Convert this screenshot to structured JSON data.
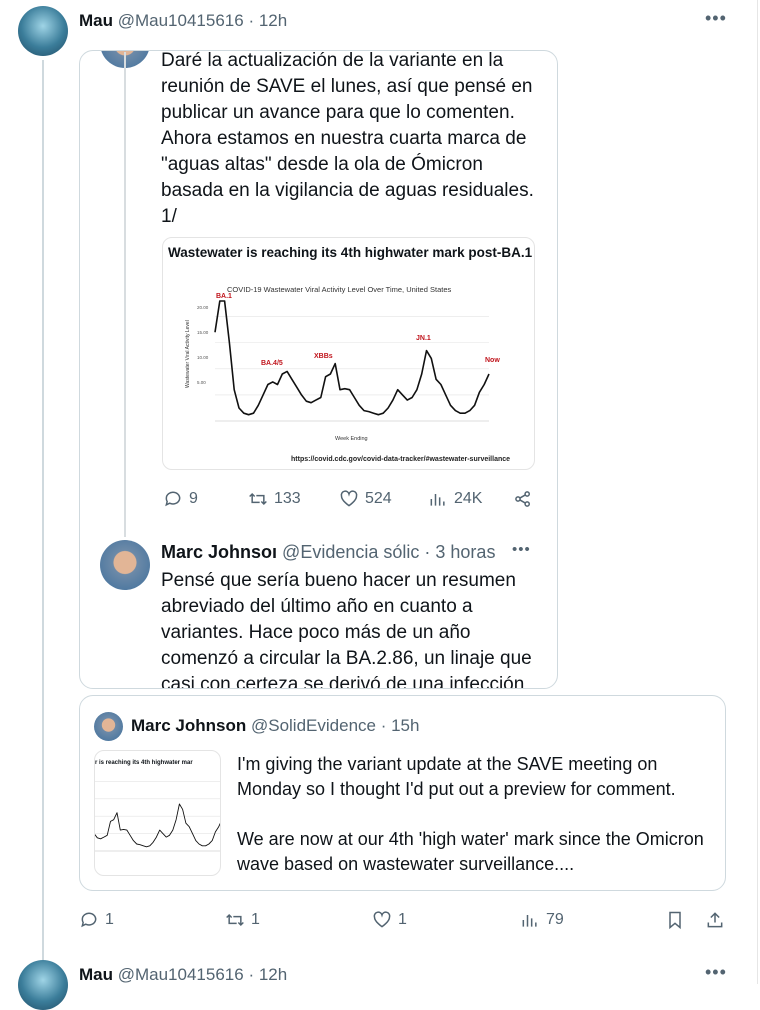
{
  "tweet": {
    "author_name": "Mau",
    "author_handle": "@Mau10415616",
    "time": "· 12h",
    "more_icon": "more-horizontal-icon",
    "screenshot": {
      "text_lines": [
        "Daré la actualización de la variante en la",
        "reunión de SAVE el lunes, así que pensé en",
        "publicar un avance para que lo comenten.",
        "Ahora estamos en nuestra cuarta marca de",
        "\"aguas altas\" desde la ola de Ómicron",
        "basada en la vigilancia de aguas residuales.",
        "1/"
      ],
      "chart": {
        "headline": "Wastewater is reaching its 4th highwater mark post-BA.1",
        "title": "COVID-19 Wastewater Viral Activity Level Over Time, United States",
        "ylabel": "Wastewater Viral Activity Level",
        "xlabel": "Week Ending",
        "yticks": [
          "5.00",
          "10.00",
          "15.00",
          "20.00"
        ],
        "annotations": [
          "BA.1",
          "BA.4/5",
          "XBBs",
          "JN.1",
          "Now"
        ],
        "source": "https://covid.cdc.gov/covid-data-tracker/#wastewater-surveillance",
        "annotation_color": "#c0141c"
      },
      "actions": {
        "replies": "9",
        "reposts": "133",
        "likes": "524",
        "views": "24K"
      },
      "reply": {
        "author_name": "Marc Johnsoı",
        "author_handle": "@Evidencia sólic",
        "time": "· 3 horas",
        "text_lines": [
          "Pensé que sería bueno hacer un resumen",
          "abreviado del último año en cuanto a",
          "variantes. Hace poco más de un año",
          "comenzó a circular la BA.2.86, un linaje que",
          "casi con certeza se derivó de una infección"
        ]
      }
    },
    "quote": {
      "author_name": "Marc Johnson",
      "author_handle": "@SolidEvidence",
      "time": "· 15h",
      "thumb_text": "r is reaching its 4th highwater mar",
      "text_p1": "I'm giving the variant update at the SAVE meeting on Monday so I thought I'd put out a preview for comment.",
      "text_p2": "We are now at our 4th 'high water' mark since the Omicron wave based on wastewater surveillance...."
    },
    "actions": {
      "replies": "1",
      "reposts": "1",
      "likes": "1",
      "views": "79"
    }
  },
  "next_tweet": {
    "author_name": "Mau",
    "author_handle": "@Mau10415616",
    "time": "· 12h"
  },
  "chart_data": {
    "type": "line",
    "title": "COVID-19 Wastewater Viral Activity Level Over Time, United States",
    "xlabel": "Week Ending",
    "ylabel": "Wastewater Viral Activity Level",
    "ylim": [
      0,
      23
    ],
    "values": [
      17,
      23,
      23,
      15,
      6,
      2.5,
      1.5,
      1.2,
      1.5,
      3,
      5,
      7,
      7.5,
      7,
      9,
      9.5,
      8,
      6.5,
      5,
      3.8,
      3.5,
      4,
      4.5,
      8.5,
      9,
      11,
      6,
      6.2,
      6,
      4.5,
      3,
      2,
      1.8,
      1.5,
      1.2,
      1.5,
      2.5,
      4,
      6,
      5,
      4,
      4.5,
      6,
      9,
      13.5,
      12,
      8,
      7,
      5,
      3,
      2,
      1.5,
      1.5,
      2,
      3,
      5.5,
      7,
      9
    ]
  }
}
